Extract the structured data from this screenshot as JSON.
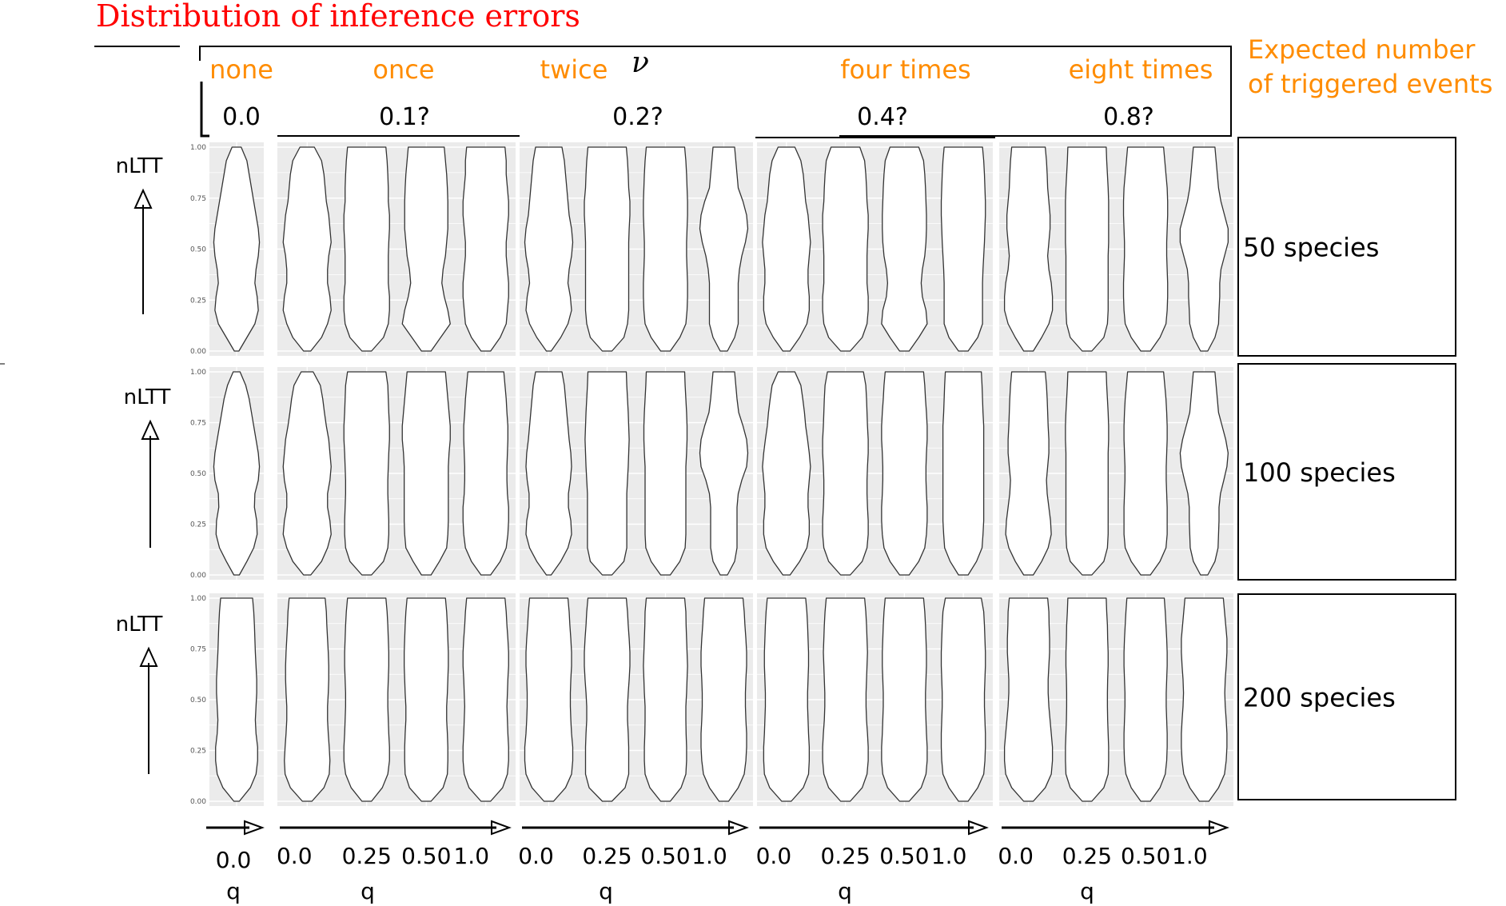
{
  "title": "Distribution of inference errors",
  "nu_symbol": "ν",
  "right_header": [
    "Expected number",
    "of triggered events"
  ],
  "columns": [
    {
      "label": "none",
      "nu": "0.0"
    },
    {
      "label": "once",
      "nu": "0.1?"
    },
    {
      "label": "twice",
      "nu": "0.2?"
    },
    {
      "label": "four times",
      "nu": "0.4?"
    },
    {
      "label": "eight times",
      "nu": "0.8?"
    }
  ],
  "rows": [
    {
      "label": "50 species",
      "ylabel": "nLTT"
    },
    {
      "label": "100 species",
      "ylabel": "nLTT"
    },
    {
      "label": "200 species",
      "ylabel": "nLTT"
    }
  ],
  "xlabel": "q",
  "colors": {
    "title": "#ff0000",
    "header": "#ff8c00",
    "panel": "#ebebeb",
    "violin_stroke": "#333333"
  },
  "chart_data": {
    "type": "violin",
    "ylim": [
      0,
      1
    ],
    "yticks": [
      "0.00",
      "0.25",
      "0.50",
      "0.75",
      "1.00"
    ],
    "q_values_first": [
      "0.0"
    ],
    "q_values": [
      "0.0",
      "0.25",
      "0.50",
      "1.0"
    ],
    "grid": true,
    "panels": [
      {
        "row": "50 species",
        "nu": "0.0",
        "q": [
          "0.0"
        ],
        "width_profiles": [
          [
            0.1,
            0.45,
            0.8,
            0.95,
            0.9,
            0.8,
            0.85,
            0.95,
            1.0,
            0.95,
            0.85,
            0.75,
            0.65,
            0.55,
            0.45,
            0.2
          ]
        ]
      },
      {
        "row": "50 species",
        "nu": "0.1?",
        "q": [
          "0.0",
          "0.25",
          "0.50",
          "1.0"
        ],
        "width_profiles": [
          [
            0.15,
            0.6,
            0.85,
            1.0,
            0.95,
            0.85,
            0.85,
            0.9,
            1.0,
            0.95,
            0.9,
            0.8,
            0.75,
            0.7,
            0.6,
            0.3
          ],
          [
            0.2,
            0.7,
            0.9,
            0.95,
            0.95,
            0.9,
            0.9,
            0.9,
            0.92,
            0.95,
            0.95,
            0.9,
            0.9,
            0.88,
            0.85,
            0.8
          ],
          [
            0.2,
            0.6,
            1.0,
            0.9,
            0.75,
            0.65,
            0.7,
            0.8,
            0.85,
            0.9,
            0.9,
            0.9,
            0.88,
            0.85,
            0.8,
            0.75
          ],
          [
            0.2,
            0.6,
            0.85,
            0.9,
            0.95,
            0.95,
            0.9,
            0.85,
            0.85,
            0.9,
            0.95,
            0.95,
            0.9,
            0.85,
            0.85,
            0.8
          ]
        ]
      },
      {
        "row": "50 species",
        "nu": "0.2?",
        "q": [
          "0.0",
          "0.25",
          "0.50",
          "1.0"
        ],
        "width_profiles": [
          [
            0.1,
            0.5,
            0.8,
            0.95,
            0.9,
            0.8,
            0.85,
            0.95,
            1.0,
            0.95,
            0.85,
            0.8,
            0.75,
            0.7,
            0.65,
            0.55
          ],
          [
            0.2,
            0.7,
            0.85,
            0.9,
            0.9,
            0.9,
            0.9,
            0.9,
            0.9,
            0.92,
            0.95,
            0.95,
            0.9,
            0.88,
            0.85,
            0.8
          ],
          [
            0.2,
            0.6,
            0.85,
            0.9,
            0.92,
            0.92,
            0.9,
            0.88,
            0.88,
            0.9,
            0.92,
            0.92,
            0.9,
            0.88,
            0.85,
            0.8
          ],
          [
            0.15,
            0.45,
            0.6,
            0.6,
            0.6,
            0.6,
            0.65,
            0.75,
            0.9,
            1.0,
            0.95,
            0.8,
            0.6,
            0.55,
            0.5,
            0.45
          ]
        ]
      },
      {
        "row": "50 species",
        "nu": "0.4?",
        "q": [
          "0.0",
          "0.25",
          "0.50",
          "1.0"
        ],
        "width_profiles": [
          [
            0.15,
            0.55,
            0.85,
            0.95,
            0.95,
            0.9,
            0.9,
            0.95,
            1.0,
            0.95,
            0.9,
            0.8,
            0.75,
            0.7,
            0.6,
            0.35
          ],
          [
            0.2,
            0.7,
            0.9,
            0.95,
            0.95,
            0.9,
            0.9,
            0.9,
            0.92,
            0.95,
            0.95,
            0.9,
            0.88,
            0.85,
            0.8,
            0.6
          ],
          [
            0.2,
            0.6,
            0.95,
            0.9,
            0.75,
            0.7,
            0.75,
            0.85,
            0.9,
            0.92,
            0.92,
            0.9,
            0.88,
            0.85,
            0.8,
            0.6
          ],
          [
            0.2,
            0.6,
            0.8,
            0.8,
            0.8,
            0.8,
            0.82,
            0.85,
            0.88,
            0.9,
            0.92,
            0.92,
            0.9,
            0.88,
            0.85,
            0.8
          ]
        ]
      },
      {
        "row": "50 species",
        "nu": "0.8?",
        "q": [
          "0.0",
          "0.25",
          "0.50",
          "1.0"
        ],
        "width_profiles": [
          [
            0.2,
            0.55,
            0.85,
            1.0,
            1.0,
            0.95,
            0.85,
            0.8,
            0.85,
            0.9,
            0.9,
            0.85,
            0.8,
            0.78,
            0.75,
            0.7
          ],
          [
            0.2,
            0.7,
            0.85,
            0.88,
            0.88,
            0.88,
            0.88,
            0.88,
            0.9,
            0.9,
            0.9,
            0.9,
            0.88,
            0.85,
            0.82,
            0.8
          ],
          [
            0.2,
            0.6,
            0.85,
            0.9,
            0.92,
            0.92,
            0.9,
            0.88,
            0.88,
            0.9,
            0.92,
            0.92,
            0.9,
            0.85,
            0.8,
            0.75
          ],
          [
            0.15,
            0.45,
            0.6,
            0.62,
            0.65,
            0.65,
            0.7,
            0.85,
            1.0,
            1.0,
            0.85,
            0.7,
            0.6,
            0.55,
            0.5,
            0.45
          ]
        ]
      },
      {
        "row": "100 species",
        "nu": "0.0",
        "q": [
          "0.0"
        ],
        "width_profiles": [
          [
            0.12,
            0.45,
            0.75,
            0.9,
            0.88,
            0.78,
            0.8,
            0.95,
            1.0,
            0.95,
            0.85,
            0.75,
            0.65,
            0.55,
            0.4,
            0.15
          ]
        ]
      },
      {
        "row": "100 species",
        "nu": "0.1?",
        "q": [
          "0.0",
          "0.25",
          "0.50",
          "1.0"
        ],
        "width_profiles": [
          [
            0.15,
            0.6,
            0.85,
            1.0,
            0.95,
            0.85,
            0.85,
            0.95,
            1.0,
            0.95,
            0.9,
            0.8,
            0.72,
            0.65,
            0.55,
            0.25
          ],
          [
            0.2,
            0.7,
            0.88,
            0.92,
            0.92,
            0.9,
            0.88,
            0.88,
            0.9,
            0.92,
            0.95,
            0.95,
            0.92,
            0.9,
            0.88,
            0.8
          ],
          [
            0.2,
            0.55,
            0.85,
            0.9,
            0.92,
            0.92,
            0.92,
            0.92,
            0.92,
            0.95,
            1.0,
            1.0,
            0.95,
            0.9,
            0.85,
            0.8
          ],
          [
            0.2,
            0.6,
            0.85,
            0.92,
            0.95,
            0.95,
            0.9,
            0.88,
            0.88,
            0.9,
            0.92,
            0.92,
            0.88,
            0.85,
            0.8,
            0.75
          ]
        ]
      },
      {
        "row": "100 species",
        "nu": "0.2?",
        "q": [
          "0.0",
          "0.25",
          "0.50",
          "1.0"
        ],
        "width_profiles": [
          [
            0.1,
            0.5,
            0.8,
            0.95,
            0.92,
            0.82,
            0.82,
            0.9,
            0.95,
            0.92,
            0.85,
            0.8,
            0.75,
            0.7,
            0.65,
            0.55
          ],
          [
            0.2,
            0.7,
            0.82,
            0.82,
            0.82,
            0.82,
            0.82,
            0.85,
            0.88,
            0.9,
            0.92,
            0.9,
            0.88,
            0.85,
            0.82,
            0.8
          ],
          [
            0.2,
            0.6,
            0.82,
            0.85,
            0.85,
            0.85,
            0.85,
            0.85,
            0.85,
            0.88,
            0.9,
            0.9,
            0.88,
            0.85,
            0.82,
            0.8
          ],
          [
            0.15,
            0.45,
            0.55,
            0.55,
            0.55,
            0.55,
            0.6,
            0.75,
            0.95,
            1.0,
            0.95,
            0.8,
            0.62,
            0.55,
            0.5,
            0.45
          ]
        ]
      },
      {
        "row": "100 species",
        "nu": "0.4?",
        "q": [
          "0.0",
          "0.25",
          "0.50",
          "1.0"
        ],
        "width_profiles": [
          [
            0.15,
            0.55,
            0.85,
            0.95,
            0.95,
            0.9,
            0.9,
            0.95,
            1.0,
            0.95,
            0.88,
            0.8,
            0.75,
            0.68,
            0.6,
            0.35
          ],
          [
            0.2,
            0.7,
            0.9,
            0.95,
            0.95,
            0.92,
            0.9,
            0.9,
            0.92,
            0.95,
            0.95,
            0.92,
            0.9,
            0.88,
            0.85,
            0.75
          ],
          [
            0.2,
            0.6,
            0.85,
            0.92,
            0.95,
            0.95,
            0.92,
            0.9,
            0.9,
            0.92,
            0.95,
            0.95,
            0.92,
            0.88,
            0.85,
            0.8
          ],
          [
            0.2,
            0.55,
            0.78,
            0.82,
            0.85,
            0.85,
            0.85,
            0.85,
            0.85,
            0.85,
            0.85,
            0.85,
            0.82,
            0.8,
            0.78,
            0.75
          ]
        ]
      },
      {
        "row": "100 species",
        "nu": "0.8?",
        "q": [
          "0.0",
          "0.25",
          "0.50",
          "1.0"
        ],
        "width_profiles": [
          [
            0.2,
            0.55,
            0.82,
            0.95,
            0.92,
            0.85,
            0.78,
            0.75,
            0.8,
            0.85,
            0.85,
            0.82,
            0.8,
            0.78,
            0.75,
            0.7
          ],
          [
            0.2,
            0.7,
            0.85,
            0.88,
            0.88,
            0.88,
            0.88,
            0.88,
            0.88,
            0.88,
            0.9,
            0.9,
            0.88,
            0.85,
            0.82,
            0.8
          ],
          [
            0.2,
            0.6,
            0.85,
            0.9,
            0.9,
            0.9,
            0.88,
            0.86,
            0.86,
            0.88,
            0.9,
            0.9,
            0.88,
            0.85,
            0.8,
            0.75
          ],
          [
            0.15,
            0.45,
            0.58,
            0.6,
            0.62,
            0.62,
            0.68,
            0.82,
            0.95,
            1.0,
            0.9,
            0.75,
            0.6,
            0.55,
            0.5,
            0.45
          ]
        ]
      },
      {
        "row": "200 species",
        "nu": "0.0",
        "q": [
          "0.0"
        ],
        "width_profiles": [
          [
            0.12,
            0.6,
            0.85,
            0.92,
            0.92,
            0.85,
            0.82,
            0.85,
            0.88,
            0.88,
            0.85,
            0.82,
            0.8,
            0.78,
            0.75,
            0.7
          ]
        ]
      },
      {
        "row": "200 species",
        "nu": "0.1?",
        "q": [
          "0.0",
          "0.25",
          "0.50",
          "1.0"
        ],
        "width_profiles": [
          [
            0.2,
            0.7,
            0.92,
            0.95,
            0.92,
            0.88,
            0.85,
            0.85,
            0.88,
            0.9,
            0.9,
            0.88,
            0.85,
            0.82,
            0.8,
            0.75
          ],
          [
            0.2,
            0.65,
            0.88,
            0.95,
            0.95,
            0.92,
            0.9,
            0.88,
            0.88,
            0.9,
            0.92,
            0.92,
            0.9,
            0.88,
            0.85,
            0.8
          ],
          [
            0.2,
            0.7,
            0.88,
            0.9,
            0.9,
            0.88,
            0.85,
            0.85,
            0.88,
            0.9,
            0.92,
            0.92,
            0.9,
            0.88,
            0.85,
            0.8
          ],
          [
            0.2,
            0.7,
            0.9,
            0.95,
            0.95,
            0.92,
            0.9,
            0.88,
            0.9,
            0.92,
            0.95,
            0.95,
            0.92,
            0.88,
            0.85,
            0.8
          ]
        ]
      },
      {
        "row": "200 species",
        "nu": "0.2?",
        "q": [
          "0.0",
          "0.25",
          "0.50",
          "1.0"
        ],
        "width_profiles": [
          [
            0.2,
            0.7,
            0.95,
            1.0,
            1.0,
            0.95,
            0.92,
            0.9,
            0.9,
            0.92,
            0.95,
            0.95,
            0.92,
            0.88,
            0.85,
            0.8
          ],
          [
            0.2,
            0.75,
            0.9,
            0.9,
            0.9,
            0.88,
            0.85,
            0.85,
            0.88,
            0.92,
            0.95,
            0.95,
            0.92,
            0.88,
            0.85,
            0.8
          ],
          [
            0.2,
            0.65,
            0.85,
            0.88,
            0.88,
            0.86,
            0.85,
            0.85,
            0.88,
            0.9,
            0.92,
            0.9,
            0.88,
            0.86,
            0.85,
            0.8
          ],
          [
            0.2,
            0.6,
            0.85,
            0.92,
            0.95,
            0.95,
            0.92,
            0.9,
            0.9,
            0.92,
            0.95,
            0.95,
            0.92,
            0.88,
            0.85,
            0.8
          ]
        ]
      },
      {
        "row": "200 species",
        "nu": "0.4?",
        "q": [
          "0.0",
          "0.25",
          "0.50",
          "1.0"
        ],
        "width_profiles": [
          [
            0.2,
            0.7,
            0.92,
            0.95,
            0.95,
            0.92,
            0.9,
            0.88,
            0.88,
            0.9,
            0.92,
            0.92,
            0.9,
            0.88,
            0.85,
            0.8
          ],
          [
            0.2,
            0.7,
            0.9,
            0.95,
            0.95,
            0.92,
            0.88,
            0.86,
            0.86,
            0.88,
            0.9,
            0.92,
            0.9,
            0.88,
            0.85,
            0.8
          ],
          [
            0.2,
            0.7,
            0.9,
            0.95,
            0.95,
            0.92,
            0.9,
            0.88,
            0.88,
            0.9,
            0.92,
            0.92,
            0.9,
            0.88,
            0.85,
            0.8
          ],
          [
            0.2,
            0.6,
            0.85,
            0.9,
            0.92,
            0.92,
            0.9,
            0.88,
            0.88,
            0.9,
            0.92,
            0.92,
            0.9,
            0.88,
            0.85,
            0.75
          ]
        ]
      },
      {
        "row": "200 species",
        "nu": "0.8?",
        "q": [
          "0.0",
          "0.25",
          "0.50",
          "1.0"
        ],
        "width_profiles": [
          [
            0.2,
            0.7,
            0.95,
            1.0,
            1.0,
            0.95,
            0.9,
            0.85,
            0.82,
            0.82,
            0.85,
            0.88,
            0.88,
            0.86,
            0.85,
            0.8
          ],
          [
            0.2,
            0.7,
            0.88,
            0.9,
            0.9,
            0.88,
            0.86,
            0.85,
            0.85,
            0.86,
            0.88,
            0.88,
            0.86,
            0.85,
            0.82,
            0.8
          ],
          [
            0.2,
            0.6,
            0.82,
            0.88,
            0.9,
            0.9,
            0.88,
            0.86,
            0.86,
            0.88,
            0.9,
            0.9,
            0.88,
            0.85,
            0.82,
            0.78
          ],
          [
            0.2,
            0.6,
            0.85,
            0.92,
            0.95,
            0.95,
            0.92,
            0.88,
            0.86,
            0.88,
            0.92,
            0.95,
            0.95,
            0.9,
            0.85,
            0.8
          ]
        ]
      }
    ]
  }
}
